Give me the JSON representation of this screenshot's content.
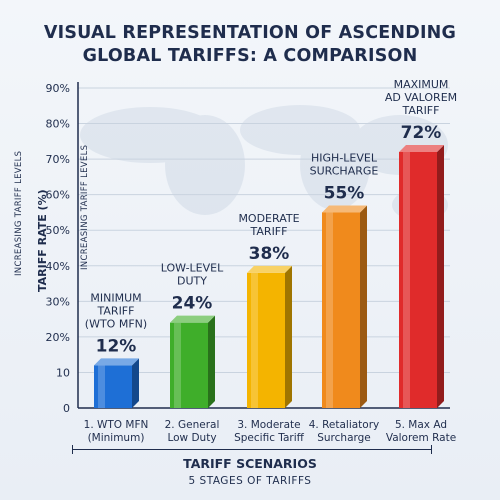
{
  "title": {
    "line1": "VISUAL REPRESENTATION OF ASCENDING",
    "line2": "GLOBAL TARIFFS: A COMPARISON"
  },
  "axis": {
    "ylabel_outer": "INCREASING TARIFF LEVELS",
    "ylabel_main": "TARIFF RATE (%)",
    "ylabel_inner": "INCREASING TARIFF LEVELS",
    "xtitle": "TARIFF SCENARIOS",
    "xsubtitle": "5 STAGES OF TARIFFS"
  },
  "chart_data": {
    "type": "bar",
    "categories": [
      [
        "1. WTO MFN",
        "(Minimum)"
      ],
      [
        "2. General",
        "Low Duty"
      ],
      [
        "3. Moderate",
        "Specific Tariff"
      ],
      [
        "4. Retaliatory",
        "Surcharge"
      ],
      [
        "5. Max Ad",
        "Valorem Rate"
      ]
    ],
    "values": [
      12,
      24,
      38,
      55,
      72
    ],
    "value_labels": [
      "12%",
      "24%",
      "38%",
      "55%",
      "72%"
    ],
    "bar_labels": [
      [
        "MINIMUM",
        "TARIFF",
        "(WTO MFN)"
      ],
      [
        "LOW-LEVEL",
        "DUTY"
      ],
      [
        "MODERATE",
        "TARIFF"
      ],
      [
        "HIGH-LEVEL",
        "SURCHARGE"
      ],
      [
        "MAXIMUM",
        "AD VALOREM",
        "TARIFF"
      ]
    ],
    "yticks": [
      "0",
      "10",
      "20%",
      "30%",
      "40%",
      "50%",
      "60%",
      "70%",
      "80%",
      "90%"
    ],
    "ylim": [
      0,
      90
    ],
    "grid": true,
    "colors": [
      "#1e6fd6",
      "#3fae2a",
      "#f4b400",
      "#f08a1c",
      "#e02b2b"
    ]
  }
}
